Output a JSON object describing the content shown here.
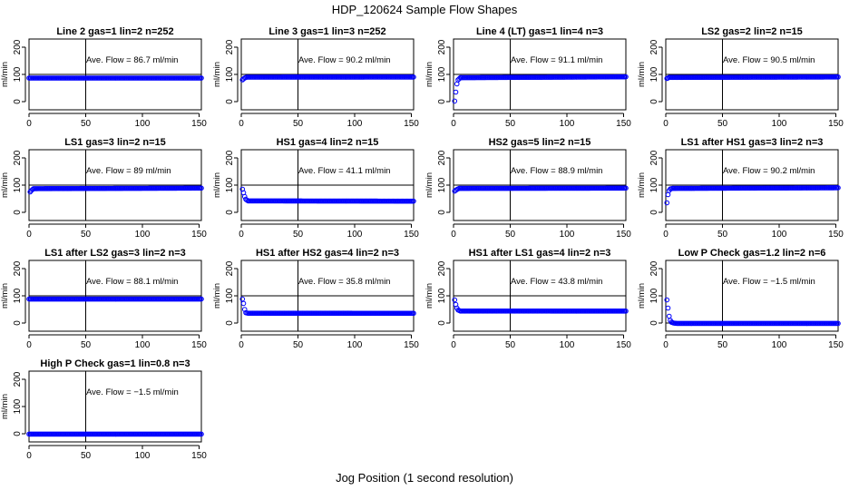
{
  "figure": {
    "title": "HDP_120624  Sample Flow Shapes",
    "xlabel": "Jog Position (1 second resolution)"
  },
  "colors": {
    "points": "#0000ff",
    "axes": "#000000",
    "background": "#ffffff"
  },
  "chart_data": [
    {
      "type": "scatter",
      "title": "Line 2 gas=1 lin=2 n=252",
      "ylabel": "ml/min",
      "annotation": "Ave. Flow =  86.7  ml/min",
      "xlim": [
        0,
        152
      ],
      "ylim": [
        -30,
        230
      ],
      "xticks": [
        0,
        50,
        100,
        150
      ],
      "yticks": [
        0,
        100,
        200
      ],
      "hline": 100,
      "vline": 50,
      "series": [
        {
          "x": [
            0,
            152
          ],
          "y": [
            86.7,
            86.7
          ]
        }
      ]
    },
    {
      "type": "scatter",
      "title": "Line 3 gas=1 lin=3 n=252",
      "ylabel": "ml/min",
      "annotation": "Ave. Flow =  90.2  ml/min",
      "xlim": [
        0,
        152
      ],
      "ylim": [
        -30,
        230
      ],
      "xticks": [
        0,
        50,
        100,
        150
      ],
      "yticks": [
        0,
        100,
        200
      ],
      "hline": 100,
      "vline": 50,
      "series": [
        {
          "x": [
            1,
            3,
            5,
            152
          ],
          "y": [
            80,
            87,
            90,
            90.2
          ]
        }
      ]
    },
    {
      "type": "scatter",
      "title": "Line 4 (LT) gas=1 lin=4 n=3",
      "ylabel": "ml/min",
      "annotation": "Ave. Flow =  91.1  ml/min",
      "xlim": [
        0,
        152
      ],
      "ylim": [
        -30,
        230
      ],
      "xticks": [
        0,
        50,
        100,
        150
      ],
      "yticks": [
        0,
        100,
        200
      ],
      "hline": 100,
      "vline": 50,
      "series": [
        {
          "x": [
            1,
            2,
            3,
            4,
            6,
            152
          ],
          "y": [
            2,
            35,
            65,
            80,
            88,
            91.1
          ]
        }
      ]
    },
    {
      "type": "scatter",
      "title": "LS2 gas=2 lin=2 n=15",
      "ylabel": "ml/min",
      "annotation": "Ave. Flow =  90.5  ml/min",
      "xlim": [
        0,
        152
      ],
      "ylim": [
        -30,
        230
      ],
      "xticks": [
        0,
        50,
        100,
        150
      ],
      "yticks": [
        0,
        100,
        200
      ],
      "hline": 100,
      "vline": 50,
      "series": [
        {
          "x": [
            1,
            3,
            152
          ],
          "y": [
            85,
            89,
            90.5
          ]
        }
      ]
    },
    {
      "type": "scatter",
      "title": "LS1 gas=3 lin=2 n=15",
      "ylabel": "ml/min",
      "annotation": "Ave. Flow =  89  ml/min",
      "xlim": [
        0,
        152
      ],
      "ylim": [
        -30,
        230
      ],
      "xticks": [
        0,
        50,
        100,
        150
      ],
      "yticks": [
        0,
        100,
        200
      ],
      "hline": 100,
      "vline": 50,
      "series": [
        {
          "x": [
            1,
            2,
            4,
            152
          ],
          "y": [
            75,
            80,
            87,
            89
          ]
        }
      ]
    },
    {
      "type": "scatter",
      "title": "HS1 gas=4 lin=2 n=15",
      "ylabel": "ml/min",
      "annotation": "Ave. Flow =  41.1  ml/min",
      "xlim": [
        0,
        152
      ],
      "ylim": [
        -30,
        230
      ],
      "xticks": [
        0,
        50,
        100,
        150
      ],
      "yticks": [
        0,
        100,
        200
      ],
      "hline": 100,
      "vline": 50,
      "series": [
        {
          "x": [
            1,
            2,
            3,
            4,
            6,
            152
          ],
          "y": [
            85,
            72,
            58,
            48,
            42,
            41.1
          ]
        }
      ]
    },
    {
      "type": "scatter",
      "title": "HS2 gas=5 lin=2 n=15",
      "ylabel": "ml/min",
      "annotation": "Ave. Flow =  88.9  ml/min",
      "xlim": [
        0,
        152
      ],
      "ylim": [
        -30,
        230
      ],
      "xticks": [
        0,
        50,
        100,
        150
      ],
      "yticks": [
        0,
        100,
        200
      ],
      "hline": 100,
      "vline": 50,
      "series": [
        {
          "x": [
            1,
            3,
            5,
            152
          ],
          "y": [
            78,
            84,
            88,
            88.9
          ]
        }
      ]
    },
    {
      "type": "scatter",
      "title": "LS1 after HS1 gas=3 lin=2 n=3",
      "ylabel": "ml/min",
      "annotation": "Ave. Flow =  90.2  ml/min",
      "xlim": [
        0,
        152
      ],
      "ylim": [
        -30,
        230
      ],
      "xticks": [
        0,
        50,
        100,
        150
      ],
      "yticks": [
        0,
        100,
        200
      ],
      "hline": 100,
      "vline": 50,
      "series": [
        {
          "x": [
            1,
            2,
            3,
            4,
            6,
            152
          ],
          "y": [
            35,
            65,
            80,
            86,
            88,
            90.2
          ]
        }
      ]
    },
    {
      "type": "scatter",
      "title": "LS1 after LS2 gas=3 lin=2 n=3",
      "ylabel": "ml/min",
      "annotation": "Ave. Flow =  88.1  ml/min",
      "xlim": [
        0,
        152
      ],
      "ylim": [
        -30,
        230
      ],
      "xticks": [
        0,
        50,
        100,
        150
      ],
      "yticks": [
        0,
        100,
        200
      ],
      "hline": 100,
      "vline": 50,
      "series": [
        {
          "x": [
            0,
            152
          ],
          "y": [
            88.1,
            88.1
          ]
        }
      ]
    },
    {
      "type": "scatter",
      "title": "HS1 after HS2 gas=4 lin=2 n=3",
      "ylabel": "ml/min",
      "annotation": "Ave. Flow =  35.8  ml/min",
      "xlim": [
        0,
        152
      ],
      "ylim": [
        -30,
        230
      ],
      "xticks": [
        0,
        50,
        100,
        150
      ],
      "yticks": [
        0,
        100,
        200
      ],
      "hline": 100,
      "vline": 50,
      "series": [
        {
          "x": [
            1,
            2,
            3,
            4,
            6,
            152
          ],
          "y": [
            88,
            72,
            50,
            38,
            36,
            35.8
          ]
        }
      ]
    },
    {
      "type": "scatter",
      "title": "HS1 after LS1 gas=4 lin=2 n=3",
      "ylabel": "ml/min",
      "annotation": "Ave. Flow =  43.8  ml/min",
      "xlim": [
        0,
        152
      ],
      "ylim": [
        -30,
        230
      ],
      "xticks": [
        0,
        50,
        100,
        150
      ],
      "yticks": [
        0,
        100,
        200
      ],
      "hline": 100,
      "vline": 50,
      "series": [
        {
          "x": [
            1,
            2,
            3,
            4,
            6,
            152
          ],
          "y": [
            85,
            68,
            55,
            48,
            44,
            43.8
          ]
        }
      ]
    },
    {
      "type": "scatter",
      "title": "Low P Check gas=1.2 lin=2 n=6",
      "ylabel": "ml/min",
      "annotation": "Ave. Flow =  −1.5  ml/min",
      "xlim": [
        0,
        152
      ],
      "ylim": [
        -30,
        230
      ],
      "xticks": [
        0,
        50,
        100,
        150
      ],
      "yticks": [
        0,
        100,
        200
      ],
      "hline": 0,
      "vline": 50,
      "series": [
        {
          "x": [
            1,
            2,
            3,
            4,
            5,
            7,
            10,
            152
          ],
          "y": [
            85,
            55,
            25,
            10,
            3,
            0,
            -1.5,
            -1.5
          ]
        }
      ]
    },
    {
      "type": "scatter",
      "title": "High P Check gas=1 lin=0.8 n=3",
      "ylabel": "ml/min",
      "annotation": "Ave. Flow =  −1.5  ml/min",
      "xlim": [
        0,
        152
      ],
      "ylim": [
        -30,
        230
      ],
      "xticks": [
        0,
        50,
        100,
        150
      ],
      "yticks": [
        0,
        100,
        200
      ],
      "hline": 0,
      "vline": 50,
      "series": [
        {
          "x": [
            0,
            152
          ],
          "y": [
            -1.5,
            -1.5
          ]
        }
      ]
    }
  ]
}
